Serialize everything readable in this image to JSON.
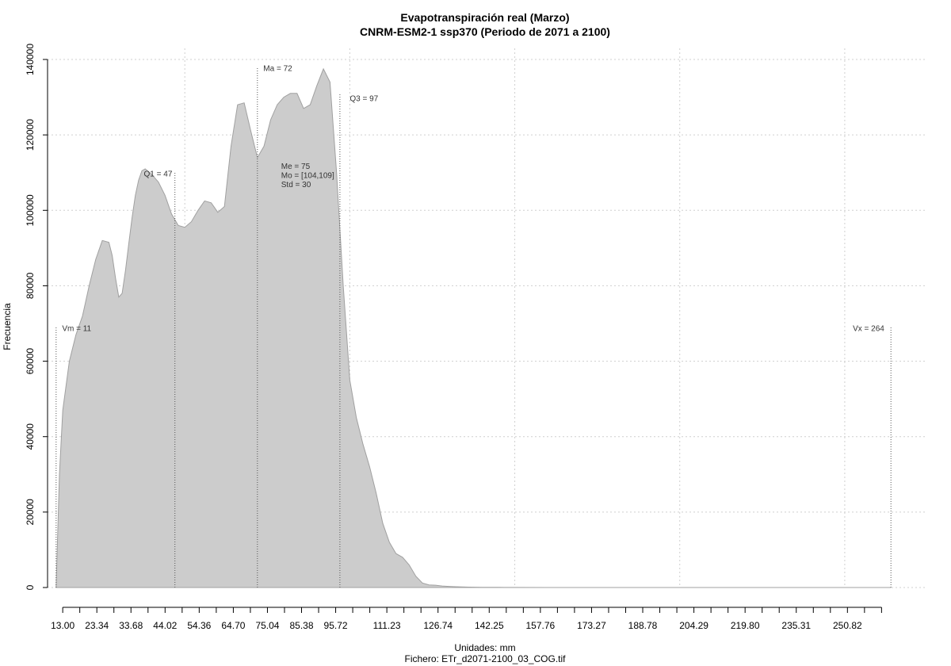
{
  "chart_data": {
    "type": "area",
    "title": "Evapotranspiración real (Marzo)",
    "subtitle": "CNRM-ESM2-1 ssp370 (Periodo de 2071 a 2100)",
    "xlabel": "Unidades: mm",
    "ylabel": "Frecuencia",
    "caption": "Fichero: ETr_d2071-2100_03_COG.tif",
    "xlim": [
      8.4,
      275
    ],
    "ylim": [
      0,
      140000
    ],
    "grid": true,
    "x_ticks_minor": [
      13,
      18.17,
      23.34,
      28.51,
      33.68,
      38.85,
      44.02,
      49.19,
      54.36,
      59.53,
      64.7,
      69.87,
      75.04,
      80.21,
      85.38,
      90.55,
      95.72,
      100.89,
      106.06,
      111.23,
      116.4,
      121.57,
      126.74,
      131.91,
      137.08,
      142.25,
      147.42,
      152.59,
      157.76,
      162.93,
      168.1,
      173.27,
      178.44,
      183.61,
      188.78,
      193.95,
      199.12,
      204.29,
      209.46,
      214.63,
      219.8,
      224.97,
      230.14,
      235.31,
      240.48,
      245.65,
      250.82,
      255.99,
      261.16
    ],
    "x_tick_labels": [
      "13.00",
      "23.34",
      "33.68",
      "44.02",
      "54.36",
      "64.70",
      "75.04",
      "85.38",
      "95.72",
      "111.23",
      "126.74",
      "142.25",
      "157.76",
      "173.27",
      "188.78",
      "204.29",
      "219.80",
      "235.31",
      "250.82"
    ],
    "x_tick_label_values": [
      13,
      23.34,
      33.68,
      44.02,
      54.36,
      64.7,
      75.04,
      85.38,
      95.72,
      111.23,
      126.74,
      142.25,
      157.76,
      173.27,
      188.78,
      204.29,
      219.8,
      235.31,
      250.82
    ],
    "y_ticks": [
      0,
      20000,
      40000,
      60000,
      80000,
      100000,
      120000,
      140000
    ],
    "y_tick_labels": [
      "0",
      "20000",
      "40000",
      "60000",
      "80000",
      "100000",
      "120000",
      "140000"
    ],
    "x_grid": [
      50,
      100,
      150,
      200,
      250
    ],
    "fill_color": "#cccccc",
    "line_color": "#a0a0a0",
    "density": {
      "x": [
        11,
        11.5,
        12,
        13,
        15,
        17,
        19,
        21,
        23,
        25,
        27,
        28,
        29,
        30,
        31,
        32,
        33,
        34,
        35,
        36,
        37,
        38,
        40,
        42,
        44,
        46,
        48,
        50,
        52,
        54,
        56,
        58,
        60,
        62,
        64,
        66,
        68,
        70,
        72,
        74,
        76,
        78,
        80,
        82,
        84,
        86,
        88,
        90,
        92,
        94,
        96,
        98,
        100,
        102,
        104,
        106,
        108,
        110,
        112,
        114,
        116,
        118,
        120,
        122,
        124,
        126,
        128,
        130,
        132,
        134,
        136,
        138,
        140,
        145,
        150,
        160,
        170,
        180,
        200,
        230,
        264
      ],
      "y": [
        0,
        15000,
        30000,
        47000,
        60000,
        67000,
        72000,
        80000,
        87000,
        92000,
        91500,
        88000,
        82000,
        77000,
        78000,
        84000,
        91000,
        98000,
        104000,
        108000,
        110500,
        111000,
        109500,
        107500,
        104000,
        99000,
        96000,
        95500,
        97000,
        100000,
        102500,
        102000,
        99500,
        101000,
        117000,
        128000,
        128500,
        121000,
        114000,
        117000,
        124000,
        128000,
        130000,
        131000,
        131000,
        127000,
        128000,
        133000,
        137500,
        134000,
        110000,
        80000,
        55000,
        45000,
        38000,
        32000,
        25000,
        17000,
        12000,
        9000,
        8000,
        6000,
        3000,
        1200,
        700,
        600,
        400,
        300,
        200,
        150,
        100,
        80,
        60,
        40,
        20,
        0,
        0,
        0,
        0,
        0,
        0
      ],
      "x_scaled_note": "unused"
    },
    "annotations": [
      {
        "label": "Vm = 11",
        "x": 11,
        "y_top": 69000,
        "text_anchor": "start",
        "text_x": 12.8,
        "text_y": 68000
      },
      {
        "label": "Q1 = 47",
        "x": 47,
        "y_top": 110000,
        "text_anchor": "end",
        "text_x": 46.2,
        "text_y": 109000
      },
      {
        "label": "Ma = 72",
        "x": 72,
        "y_top": 138000,
        "text_anchor": "start",
        "text_x": 73.8,
        "text_y": 137000
      },
      {
        "label": "Q3 = 97",
        "x": 97,
        "y_top": 131000,
        "text_anchor": "start",
        "text_x": 100.0,
        "text_y": 129000
      },
      {
        "label": "Vx = 264",
        "x": 264,
        "y_top": 69000,
        "text_anchor": "end",
        "text_x": 262.0,
        "text_y": 68000
      }
    ],
    "stats_block": {
      "lines": [
        "Me = 75",
        "Mo = [104,109]",
        "Std = 30"
      ],
      "x": 79.2,
      "y_first": 111000,
      "line_step": 2400
    }
  }
}
